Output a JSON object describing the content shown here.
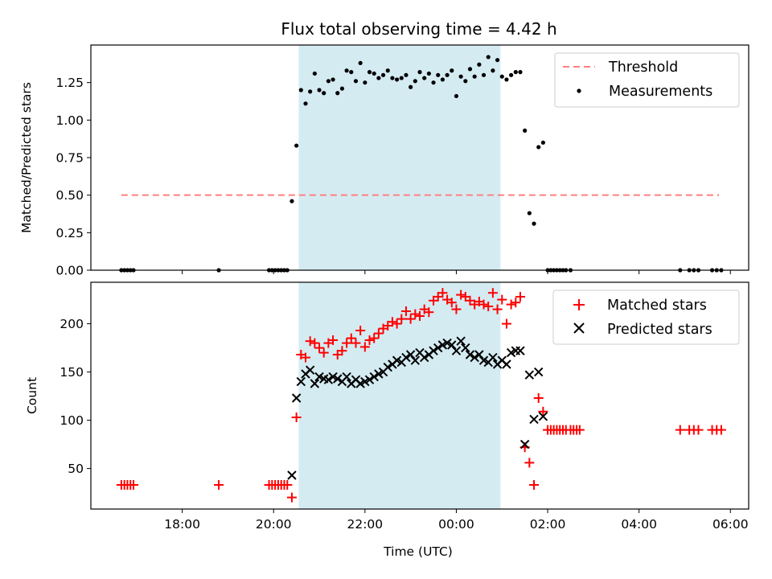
{
  "chart_data": [
    {
      "type": "scatter",
      "panel": "top",
      "title": "Flux total observing time = 4.42 h",
      "ylabel": "Matched/Predicted stars",
      "xlabel": "",
      "xlim": [
        "16:00",
        "06:24"
      ],
      "ylim": [
        0,
        1.5
      ],
      "yticks": [
        "0.00",
        "0.25",
        "0.50",
        "0.75",
        "1.00",
        "1.25"
      ],
      "legend_position": "top-right",
      "shaded_interval": {
        "start": "20:33",
        "end": "00:58",
        "color": "#d4ebf2"
      },
      "threshold": {
        "name": "Threshold",
        "value": 0.5,
        "x_start": "16:40",
        "x_end": "05:45",
        "color": "#ff7f7f",
        "style": "dashed"
      },
      "series": [
        {
          "name": "Measurements",
          "color": "#000000",
          "marker": "dot",
          "points": [
            [
              "16:40",
              0
            ],
            [
              "16:44",
              0
            ],
            [
              "16:48",
              0
            ],
            [
              "16:52",
              0
            ],
            [
              "16:56",
              0
            ],
            [
              "18:48",
              0
            ],
            [
              "19:54",
              0
            ],
            [
              "19:58",
              0
            ],
            [
              "20:02",
              0
            ],
            [
              "20:06",
              0
            ],
            [
              "20:10",
              0
            ],
            [
              "20:14",
              0
            ],
            [
              "20:18",
              0
            ],
            [
              "20:24",
              0.46
            ],
            [
              "20:30",
              0.83
            ],
            [
              "20:36",
              1.2
            ],
            [
              "20:42",
              1.11
            ],
            [
              "20:48",
              1.19
            ],
            [
              "20:54",
              1.31
            ],
            [
              "21:00",
              1.2
            ],
            [
              "21:06",
              1.18
            ],
            [
              "21:12",
              1.26
            ],
            [
              "21:18",
              1.27
            ],
            [
              "21:24",
              1.18
            ],
            [
              "21:30",
              1.21
            ],
            [
              "21:36",
              1.33
            ],
            [
              "21:42",
              1.32
            ],
            [
              "21:48",
              1.26
            ],
            [
              "21:54",
              1.38
            ],
            [
              "22:00",
              1.25
            ],
            [
              "22:06",
              1.32
            ],
            [
              "22:12",
              1.31
            ],
            [
              "22:18",
              1.28
            ],
            [
              "22:24",
              1.3
            ],
            [
              "22:30",
              1.33
            ],
            [
              "22:36",
              1.28
            ],
            [
              "22:42",
              1.27
            ],
            [
              "22:48",
              1.28
            ],
            [
              "22:54",
              1.3
            ],
            [
              "23:00",
              1.22
            ],
            [
              "23:06",
              1.26
            ],
            [
              "23:12",
              1.32
            ],
            [
              "23:18",
              1.28
            ],
            [
              "23:24",
              1.31
            ],
            [
              "23:30",
              1.25
            ],
            [
              "23:36",
              1.3
            ],
            [
              "23:42",
              1.27
            ],
            [
              "23:48",
              1.3
            ],
            [
              "23:54",
              1.33
            ],
            [
              "00:00",
              1.16
            ],
            [
              "00:06",
              1.29
            ],
            [
              "00:12",
              1.26
            ],
            [
              "00:18",
              1.34
            ],
            [
              "00:24",
              1.29
            ],
            [
              "00:30",
              1.37
            ],
            [
              "00:36",
              1.3
            ],
            [
              "00:42",
              1.42
            ],
            [
              "00:48",
              1.33
            ],
            [
              "00:54",
              1.4
            ],
            [
              "01:00",
              1.29
            ],
            [
              "01:06",
              1.27
            ],
            [
              "01:12",
              1.3
            ],
            [
              "01:18",
              1.32
            ],
            [
              "01:24",
              1.32
            ],
            [
              "01:30",
              0.93
            ],
            [
              "01:36",
              0.38
            ],
            [
              "01:42",
              0.31
            ],
            [
              "01:48",
              0.82
            ],
            [
              "01:54",
              0.85
            ],
            [
              "02:00",
              0
            ],
            [
              "02:04",
              0
            ],
            [
              "02:08",
              0
            ],
            [
              "02:12",
              0
            ],
            [
              "02:16",
              0
            ],
            [
              "02:20",
              0
            ],
            [
              "02:24",
              0
            ],
            [
              "02:30",
              0
            ],
            [
              "04:54",
              0
            ],
            [
              "05:06",
              0
            ],
            [
              "05:12",
              0
            ],
            [
              "05:18",
              0
            ],
            [
              "05:36",
              0
            ],
            [
              "05:42",
              0
            ],
            [
              "05:48",
              0
            ]
          ]
        }
      ]
    },
    {
      "type": "scatter",
      "panel": "bottom",
      "title": "",
      "ylabel": "Count",
      "xlabel": "Time (UTC)",
      "xlim": [
        "16:00",
        "06:24"
      ],
      "ylim": [
        8,
        243
      ],
      "yticks": [
        "50",
        "100",
        "150",
        "200"
      ],
      "xticks": [
        "18:00",
        "20:00",
        "22:00",
        "00:00",
        "02:00",
        "04:00",
        "06:00"
      ],
      "legend_position": "top-right",
      "shaded_interval": {
        "start": "20:33",
        "end": "00:58",
        "color": "#d4ebf2"
      },
      "series": [
        {
          "name": "Matched stars",
          "color": "#ff0000",
          "marker": "plus",
          "points": [
            [
              "16:40",
              33
            ],
            [
              "16:44",
              33
            ],
            [
              "16:48",
              33
            ],
            [
              "16:52",
              33
            ],
            [
              "16:56",
              33
            ],
            [
              "18:48",
              33
            ],
            [
              "19:54",
              33
            ],
            [
              "19:58",
              33
            ],
            [
              "20:02",
              33
            ],
            [
              "20:06",
              33
            ],
            [
              "20:10",
              33
            ],
            [
              "20:14",
              33
            ],
            [
              "20:18",
              33
            ],
            [
              "20:24",
              20
            ],
            [
              "20:30",
              103
            ],
            [
              "20:36",
              168
            ],
            [
              "20:42",
              165
            ],
            [
              "20:48",
              182
            ],
            [
              "20:54",
              180
            ],
            [
              "21:00",
              175
            ],
            [
              "21:06",
              170
            ],
            [
              "21:12",
              180
            ],
            [
              "21:18",
              183
            ],
            [
              "21:24",
              168
            ],
            [
              "21:30",
              172
            ],
            [
              "21:36",
              180
            ],
            [
              "21:42",
              185
            ],
            [
              "21:48",
              180
            ],
            [
              "21:54",
              193
            ],
            [
              "22:00",
              176
            ],
            [
              "22:06",
              183
            ],
            [
              "22:12",
              185
            ],
            [
              "22:18",
              190
            ],
            [
              "22:24",
              195
            ],
            [
              "22:30",
              198
            ],
            [
              "22:36",
              202
            ],
            [
              "22:42",
              200
            ],
            [
              "22:48",
              205
            ],
            [
              "22:54",
              213
            ],
            [
              "23:00",
              205
            ],
            [
              "23:06",
              210
            ],
            [
              "23:12",
              208
            ],
            [
              "23:18",
              215
            ],
            [
              "23:24",
              212
            ],
            [
              "23:30",
              224
            ],
            [
              "23:36",
              228
            ],
            [
              "23:42",
              232
            ],
            [
              "23:48",
              225
            ],
            [
              "23:54",
              222
            ],
            [
              "00:00",
              215
            ],
            [
              "00:06",
              230
            ],
            [
              "00:12",
              228
            ],
            [
              "00:18",
              224
            ],
            [
              "00:24",
              220
            ],
            [
              "00:30",
              223
            ],
            [
              "00:36",
              220
            ],
            [
              "00:42",
              218
            ],
            [
              "00:48",
              232
            ],
            [
              "00:54",
              215
            ],
            [
              "01:00",
              225
            ],
            [
              "01:06",
              200
            ],
            [
              "01:12",
              220
            ],
            [
              "01:18",
              222
            ],
            [
              "01:24",
              228
            ],
            [
              "01:30",
              72
            ],
            [
              "01:36",
              56
            ],
            [
              "01:42",
              33
            ],
            [
              "01:48",
              123
            ],
            [
              "01:54",
              109
            ],
            [
              "02:00",
              90
            ],
            [
              "02:04",
              90
            ],
            [
              "02:08",
              90
            ],
            [
              "02:12",
              90
            ],
            [
              "02:16",
              90
            ],
            [
              "02:20",
              90
            ],
            [
              "02:24",
              90
            ],
            [
              "02:30",
              90
            ],
            [
              "02:34",
              90
            ],
            [
              "02:38",
              90
            ],
            [
              "02:42",
              90
            ],
            [
              "04:54",
              90
            ],
            [
              "05:06",
              90
            ],
            [
              "05:12",
              90
            ],
            [
              "05:18",
              90
            ],
            [
              "05:36",
              90
            ],
            [
              "05:42",
              90
            ],
            [
              "05:48",
              90
            ]
          ]
        },
        {
          "name": "Predicted stars",
          "color": "#000000",
          "marker": "x",
          "points": [
            [
              "20:24",
              43
            ],
            [
              "20:30",
              123
            ],
            [
              "20:36",
              140
            ],
            [
              "20:42",
              148
            ],
            [
              "20:48",
              152
            ],
            [
              "20:54",
              138
            ],
            [
              "21:00",
              145
            ],
            [
              "21:06",
              143
            ],
            [
              "21:12",
              142
            ],
            [
              "21:18",
              145
            ],
            [
              "21:24",
              143
            ],
            [
              "21:30",
              140
            ],
            [
              "21:36",
              145
            ],
            [
              "21:42",
              138
            ],
            [
              "21:48",
              142
            ],
            [
              "21:54",
              138
            ],
            [
              "22:00",
              140
            ],
            [
              "22:06",
              142
            ],
            [
              "22:12",
              145
            ],
            [
              "22:18",
              148
            ],
            [
              "22:24",
              150
            ],
            [
              "22:30",
              155
            ],
            [
              "22:36",
              158
            ],
            [
              "22:42",
              162
            ],
            [
              "22:48",
              160
            ],
            [
              "22:54",
              165
            ],
            [
              "23:00",
              168
            ],
            [
              "23:06",
              162
            ],
            [
              "23:12",
              170
            ],
            [
              "23:18",
              165
            ],
            [
              "23:24",
              168
            ],
            [
              "23:30",
              172
            ],
            [
              "23:36",
              175
            ],
            [
              "23:42",
              178
            ],
            [
              "23:48",
              180
            ],
            [
              "23:54",
              178
            ],
            [
              "00:00",
              172
            ],
            [
              "00:06",
              182
            ],
            [
              "00:12",
              175
            ],
            [
              "00:18",
              168
            ],
            [
              "00:24",
              165
            ],
            [
              "00:30",
              168
            ],
            [
              "00:36",
              162
            ],
            [
              "00:42",
              160
            ],
            [
              "00:48",
              165
            ],
            [
              "00:54",
              158
            ],
            [
              "01:00",
              162
            ],
            [
              "01:06",
              158
            ],
            [
              "01:12",
              170
            ],
            [
              "01:18",
              172
            ],
            [
              "01:24",
              172
            ],
            [
              "01:30",
              75
            ],
            [
              "01:36",
              147
            ],
            [
              "01:42",
              101
            ],
            [
              "01:48",
              150
            ],
            [
              "01:54",
              104
            ]
          ]
        }
      ]
    }
  ]
}
